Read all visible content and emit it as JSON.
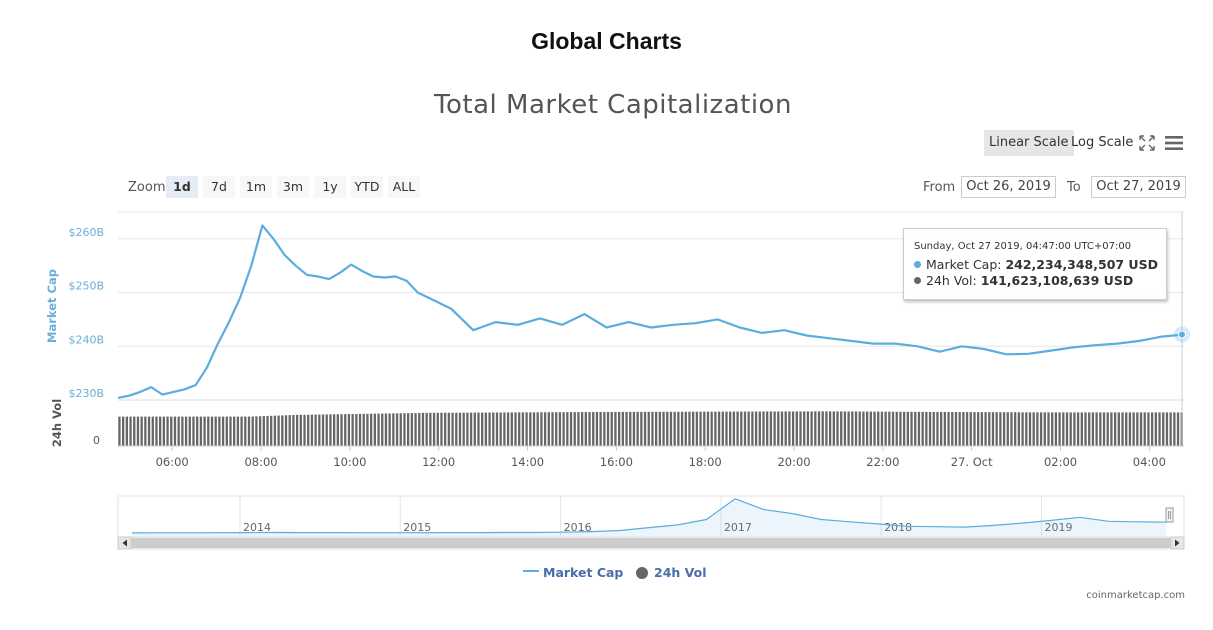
{
  "page": {
    "title": "Global Charts",
    "credits": "coinmarketcap.com"
  },
  "toolbar": {
    "linear_label": "Linear Scale",
    "log_label": "Log Scale",
    "fullscreen_icon": "fullscreen-icon",
    "menu_icon": "menu-icon"
  },
  "zoom": {
    "label": "Zoom",
    "buttons": [
      "1d",
      "7d",
      "1m",
      "3m",
      "1y",
      "YTD",
      "ALL"
    ],
    "selected": "1d"
  },
  "range": {
    "from_label": "From",
    "from_value": "Oct 26, 2019",
    "to_label": "To",
    "to_value": "Oct 27, 2019"
  },
  "tooltip": {
    "date": "Sunday, Oct 27 2019, 04:47:00 UTC+07:00",
    "market_cap_label": "Market Cap:",
    "market_cap_value": "242,234,348,507 USD",
    "vol_label": "24h Vol:",
    "vol_value": "141,623,108,639 USD"
  },
  "colors": {
    "market_cap": "#5badde",
    "volume": "#666666",
    "axis_label": "#6aaed8",
    "grid": "#e6e6e6"
  },
  "chart_data": {
    "type": "line",
    "title": "Total Market Capitalization",
    "x_start": "Oct 26 04:47",
    "x_end": "Oct 27 04:47",
    "x_tick_labels": [
      "06:00",
      "08:00",
      "10:00",
      "12:00",
      "14:00",
      "16:00",
      "18:00",
      "20:00",
      "22:00",
      "27. Oct",
      "02:00",
      "04:00"
    ],
    "y_axis": {
      "label": "Market Cap",
      "unit": "B USD",
      "ylim": [
        230,
        265
      ],
      "tick_values": [
        230,
        240,
        250,
        260
      ],
      "tick_labels": [
        "$230B",
        "$240B",
        "$250B",
        "$260B"
      ]
    },
    "vol_axis": {
      "label": "24h Vol",
      "tick_labels": [
        "0"
      ]
    },
    "series": [
      {
        "name": "Market Cap",
        "x_hours": [
          0,
          0.25,
          0.5,
          0.75,
          1.0,
          1.25,
          1.5,
          1.75,
          2.0,
          2.25,
          2.5,
          2.75,
          3.0,
          3.25,
          3.5,
          3.75,
          4.0,
          4.25,
          4.5,
          4.75,
          5.0,
          5.25,
          5.5,
          5.75,
          6.0,
          6.25,
          6.5,
          6.75,
          7.0,
          7.5,
          8.0,
          8.5,
          9.0,
          9.5,
          10.0,
          10.5,
          11.0,
          11.5,
          12.0,
          12.5,
          13.0,
          13.5,
          14.0,
          14.5,
          15.0,
          15.5,
          16.0,
          16.5,
          17.0,
          17.5,
          18.0,
          18.5,
          19.0,
          19.5,
          20.0,
          20.5,
          21.0,
          21.5,
          22.0,
          22.5,
          23.0,
          23.5,
          24.0
        ],
        "values": [
          230.4,
          230.8,
          231.5,
          232.4,
          231.0,
          231.5,
          232.0,
          232.8,
          236.0,
          240.5,
          244.5,
          249.0,
          255.0,
          262.5,
          260.0,
          257.0,
          255.0,
          253.3,
          253.0,
          252.5,
          253.7,
          255.2,
          254.0,
          253.0,
          252.8,
          253.0,
          252.2,
          250.0,
          249.0,
          247.0,
          243.0,
          244.5,
          244.0,
          245.2,
          244.0,
          246.0,
          243.5,
          244.5,
          243.5,
          244.0,
          244.3,
          245.0,
          243.5,
          242.5,
          243.0,
          242.0,
          241.5,
          241.0,
          240.5,
          240.5,
          240.0,
          239.0,
          240.0,
          239.5,
          238.5,
          238.6,
          239.2,
          239.8,
          240.2,
          240.5,
          241.0,
          241.8,
          242.2
        ]
      },
      {
        "name": "24h Vol",
        "x_hours": [
          0,
          3.0,
          4.0,
          7.0,
          11.0,
          14.0,
          16.0,
          18.5,
          21.0,
          24.0
        ],
        "values": [
          70,
          70,
          74,
          79,
          81,
          82,
          82.5,
          81,
          80,
          80
        ]
      }
    ],
    "navigator": {
      "x_tick_labels": [
        "2014",
        "2015",
        "2016",
        "2017",
        "2018",
        "2019"
      ],
      "y_axis_max": 800,
      "values": [
        3,
        4,
        5,
        6,
        8,
        12,
        9,
        8,
        7,
        6,
        7,
        8,
        9,
        10,
        12,
        18,
        30,
        55,
        120,
        180,
        300,
        760,
        520,
        430,
        300,
        250,
        200,
        150,
        140,
        130,
        170,
        220,
        280,
        350,
        260,
        250,
        240
      ]
    },
    "grid": true,
    "legend_position": "bottom-center"
  }
}
